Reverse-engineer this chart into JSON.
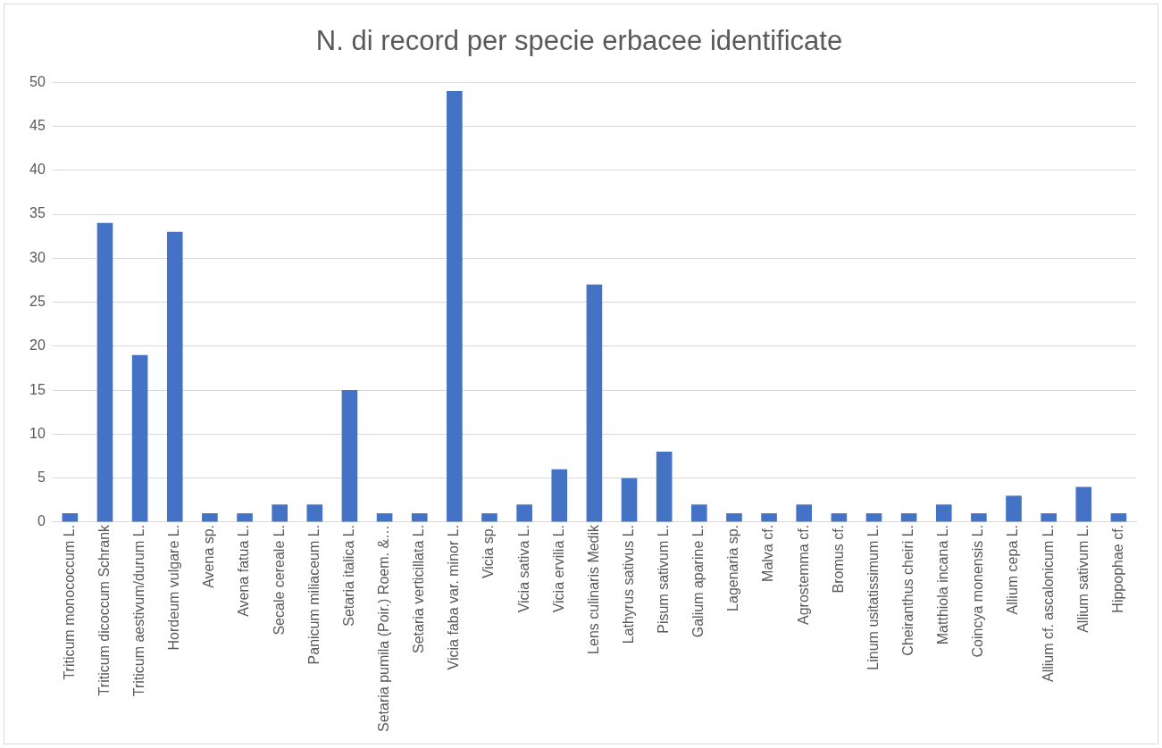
{
  "chart_data": {
    "type": "bar",
    "title": "N. di record per specie erbacee identificate",
    "categories": [
      "Triticum monococcum L.",
      "Triticum dicoccum Schrank",
      "Triticum aestivum/durum L.",
      "Hordeum vulgare L.",
      "Avena sp.",
      "Avena fatua L.",
      "Secale cereale L.",
      "Panicum miliaceum L.",
      "Setaria italica L.",
      "Setaria pumila (Poir.) Roem. &…",
      "Setaria verticillata L.",
      "Vicia faba var. minor L.",
      "Vicia sp.",
      "Vicia sativa L.",
      "Vicia ervilia L.",
      "Lens culinaris Medik",
      "Lathyrus sativus L.",
      "Pisum sativum L.",
      "Galium aparine L.",
      "Lagenaria sp.",
      "Malva cf.",
      "Agrostemma cf.",
      "Bromus cf.",
      "Linum usitatissimum L.",
      "Cheiranthus cheiri L.",
      "Matthiola incana L.",
      "Coincya monensis L.",
      "Allium cepa L.",
      "Allium cf. ascalonicum L.",
      "Allium sativum L.",
      "Hippophae cf."
    ],
    "values": [
      1,
      34,
      19,
      33,
      1,
      1,
      2,
      2,
      15,
      1,
      1,
      49,
      1,
      2,
      6,
      27,
      5,
      8,
      2,
      1,
      1,
      2,
      1,
      1,
      1,
      2,
      1,
      3,
      1,
      4,
      1
    ],
    "color": "#4472c4",
    "ylim": [
      0,
      50
    ],
    "yticks": [
      0,
      5,
      10,
      15,
      20,
      25,
      30,
      35,
      40,
      45,
      50
    ],
    "grid": "y",
    "legend": false
  }
}
